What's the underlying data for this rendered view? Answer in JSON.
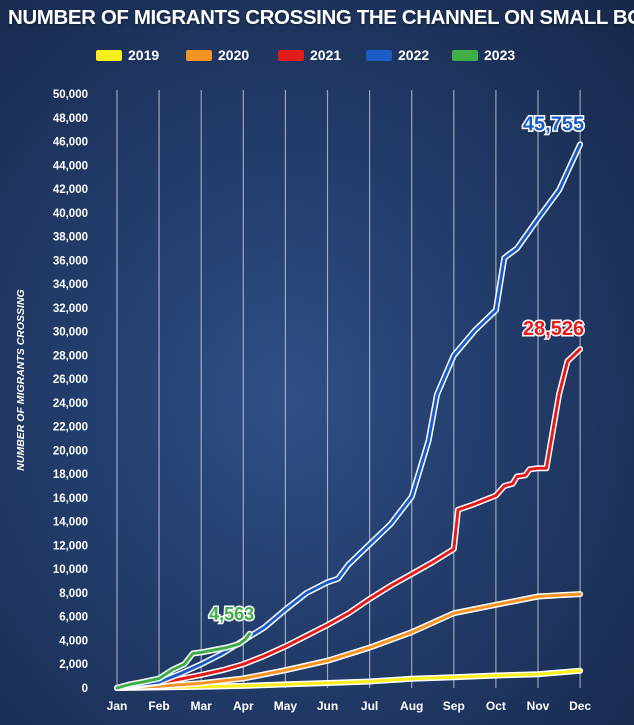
{
  "chart_data": {
    "type": "line",
    "title": "NUMBER OF MIGRANTS CROSSING THE CHANNEL ON SMALL BOATS",
    "ylabel": "NUMBER OF MIGRANTS CROSSING",
    "xlabel": "",
    "categories": [
      "Jan",
      "Feb",
      "Mar",
      "Apr",
      "May",
      "Jun",
      "Jul",
      "Aug",
      "Sep",
      "Oct",
      "Nov",
      "Dec"
    ],
    "ylim": [
      0,
      50000
    ],
    "yticks": [
      "0",
      "2,000",
      "4,000",
      "6,000",
      "8,000",
      "10,000",
      "12,000",
      "14,000",
      "16,000",
      "18,000",
      "20,000",
      "22,000",
      "24,000",
      "26,000",
      "28,000",
      "30,000",
      "32,000",
      "34,000",
      "36,000",
      "38,000",
      "40,000",
      "42,000",
      "44,000",
      "46,000",
      "48,000",
      "50,000"
    ],
    "grid": "vertical",
    "legend_position": "top",
    "series": [
      {
        "name": "2019",
        "color": "#f7ee1e",
        "x": [
          1,
          2,
          3,
          4,
          5,
          6,
          7,
          8,
          9,
          10,
          11,
          12
        ],
        "values": [
          0,
          50,
          100,
          180,
          300,
          420,
          550,
          780,
          900,
          1050,
          1150,
          1450
        ]
      },
      {
        "name": "2020",
        "color": "#f39324",
        "x": [
          1,
          2,
          3,
          4,
          5,
          6,
          7,
          8,
          9,
          10,
          11,
          11.5,
          12
        ],
        "values": [
          0,
          150,
          400,
          800,
          1500,
          2300,
          3400,
          4700,
          6300,
          7000,
          7700,
          7800,
          7900
        ]
      },
      {
        "name": "2021",
        "color": "#e21b1b",
        "x": [
          1,
          1.5,
          2,
          2.5,
          3,
          3.5,
          4,
          4.5,
          5,
          5.5,
          6,
          6.5,
          7,
          7.5,
          8,
          8.5,
          9,
          9.1,
          9.5,
          10,
          10.2,
          10.4,
          10.5,
          10.7,
          10.8,
          11,
          11.2,
          11.5,
          11.7,
          12
        ],
        "values": [
          0,
          200,
          450,
          750,
          1100,
          1500,
          2000,
          2700,
          3500,
          4400,
          5300,
          6300,
          7500,
          8600,
          9600,
          10600,
          11700,
          15000,
          15500,
          16200,
          17000,
          17200,
          17800,
          17900,
          18400,
          18500,
          18500,
          24700,
          27500,
          28526
        ]
      },
      {
        "name": "2022",
        "color": "#1a5bc4",
        "x": [
          1,
          1.5,
          2,
          2.5,
          3,
          3.5,
          4,
          4.5,
          5,
          5.5,
          6,
          6.25,
          6.5,
          7,
          7.5,
          8,
          8.4,
          8.6,
          9,
          9.5,
          10,
          10.2,
          10.5,
          11,
          11.5,
          12
        ],
        "values": [
          0,
          300,
          500,
          1200,
          2000,
          2900,
          4000,
          5100,
          6600,
          8000,
          8900,
          9200,
          10400,
          12100,
          13800,
          16100,
          20800,
          24700,
          28000,
          30100,
          31800,
          36200,
          37000,
          39500,
          41900,
          45755
        ]
      },
      {
        "name": "2023",
        "color": "#3fae49",
        "x": [
          1,
          1.3,
          1.6,
          2,
          2.3,
          2.6,
          2.8,
          3,
          3.3,
          3.6,
          3.9,
          4.05,
          4.15
        ],
        "values": [
          0,
          300,
          500,
          800,
          1500,
          2000,
          2900,
          3000,
          3200,
          3400,
          3700,
          4100,
          4563
        ]
      }
    ],
    "annotations": [
      {
        "series": "2022",
        "text": "45,755"
      },
      {
        "series": "2021",
        "text": "28,526"
      },
      {
        "series": "2023",
        "text": "4,563"
      }
    ]
  }
}
